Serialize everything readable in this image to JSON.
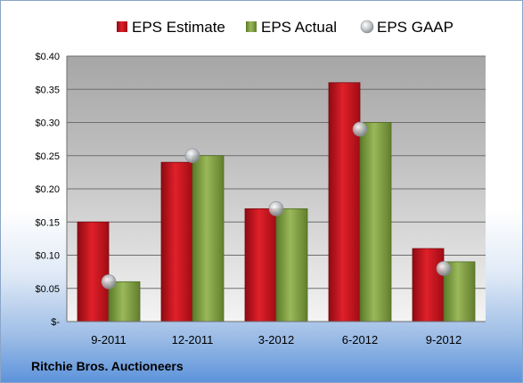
{
  "chart_data": {
    "type": "bar",
    "categories": [
      "9-2011",
      "12-2011",
      "3-2012",
      "6-2012",
      "9-2012"
    ],
    "series": [
      {
        "name": "EPS Estimate",
        "values": [
          0.15,
          0.24,
          0.17,
          0.36,
          0.11
        ],
        "color": "#c0101a"
      },
      {
        "name": "EPS Actual",
        "values": [
          0.06,
          0.25,
          0.17,
          0.3,
          0.09
        ],
        "color": "#7a9a3c"
      },
      {
        "name": "EPS GAAP",
        "values": [
          0.06,
          0.25,
          0.17,
          0.29,
          0.08
        ],
        "color": "#b8bcc4",
        "marker": "sphere"
      }
    ],
    "y_ticks": [
      "$-",
      "$0.05",
      "$0.10",
      "$0.15",
      "$0.20",
      "$0.25",
      "$0.30",
      "$0.35",
      "$0.40"
    ],
    "ylim": [
      0,
      0.4
    ],
    "grid": true,
    "legend_position": "top"
  },
  "footer": {
    "company": "Ritchie Bros. Auctioneers"
  }
}
